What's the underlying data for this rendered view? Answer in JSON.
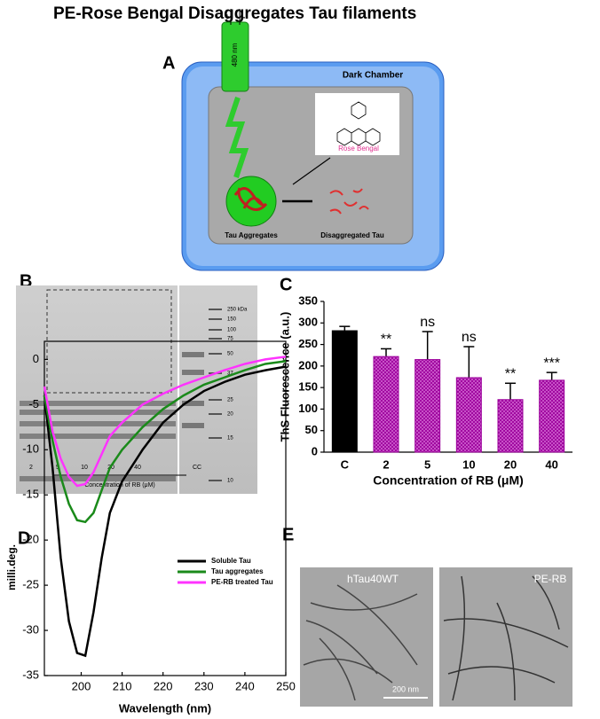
{
  "title": "PE-Rose Bengal Disaggregates Tau filaments",
  "panel_a": {
    "label": "A",
    "chamber": "Dark Chamber",
    "wavelength": "480 nm",
    "plus": "+",
    "minus": "-",
    "compound": "Rose Bengal",
    "aggregates": "Tau Aggregates",
    "disaggregated": "Disaggregated Tau"
  },
  "panel_b": {
    "label": "B",
    "lanes": [
      "2",
      "5",
      "10",
      "20",
      "40",
      "CC"
    ],
    "lane_caption": "Concentration of RB (μM)",
    "markers": [
      "250 kDa",
      "150",
      "100",
      "75",
      "50",
      "37",
      "25",
      "20",
      "15",
      "10"
    ]
  },
  "panel_e": {
    "label": "E",
    "images": [
      "hTau40WT",
      "PE-RB"
    ],
    "scale_bar": "200 nm"
  },
  "chart_data": [
    {
      "type": "bar",
      "panel": "C",
      "categories": [
        "C",
        "2",
        "5",
        "10",
        "20",
        "40"
      ],
      "values": [
        282,
        222,
        215,
        173,
        122,
        167
      ],
      "errors": [
        10,
        18,
        65,
        72,
        38,
        18
      ],
      "significance": [
        null,
        "**",
        "ns",
        "ns",
        "**",
        "***"
      ],
      "colors": [
        "#000000",
        "#9b009b",
        "#9b009b",
        "#9b009b",
        "#9b009b",
        "#9b009b"
      ],
      "xlabel": "Concentration of RB (μM)",
      "ylabel": "ThS Fluorescence (a.u.)",
      "ylim": [
        0,
        350
      ],
      "yticks": [
        0,
        50,
        100,
        150,
        200,
        250,
        300,
        350
      ]
    },
    {
      "type": "line",
      "panel": "D",
      "x": [
        191,
        193,
        195,
        197,
        199,
        201,
        203,
        205,
        207,
        210,
        215,
        220,
        225,
        230,
        235,
        240,
        245,
        250
      ],
      "series": [
        {
          "name": "Soluble Tau",
          "color": "#000000",
          "values": [
            -4,
            -12,
            -22,
            -29,
            -32.5,
            -32.8,
            -28,
            -22,
            -17,
            -13.5,
            -10,
            -7,
            -5,
            -3.5,
            -2.5,
            -1.7,
            -1.2,
            -0.8
          ]
        },
        {
          "name": "Tau aggregates",
          "color": "#1a8a1a",
          "values": [
            -4,
            -9,
            -13,
            -16,
            -17.8,
            -18,
            -17,
            -14.5,
            -12,
            -10,
            -7.5,
            -5.5,
            -4,
            -2.8,
            -2,
            -1.2,
            -0.5,
            -0.2
          ]
        },
        {
          "name": "PE-RB treated Tau",
          "color": "#ff33ff",
          "values": [
            -3,
            -8,
            -11,
            -13,
            -14,
            -13.8,
            -12.5,
            -10.5,
            -8.5,
            -7,
            -5,
            -3.8,
            -2.8,
            -2,
            -1.2,
            -0.5,
            0,
            0.3
          ]
        }
      ],
      "xlabel": "Wavelength (nm)",
      "ylabel": "milli.deg.",
      "xlim": [
        191,
        250
      ],
      "ylim": [
        -35,
        2
      ],
      "xticks": [
        200,
        210,
        220,
        230,
        240,
        250
      ],
      "yticks": [
        0,
        -5,
        -10,
        -15,
        -20,
        -25,
        -30,
        -35
      ]
    }
  ]
}
